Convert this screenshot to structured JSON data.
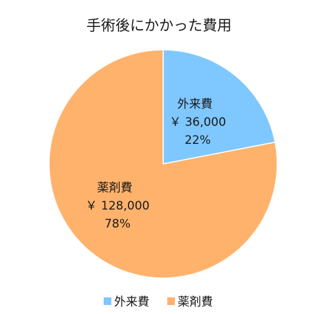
{
  "chart_data": {
    "type": "pie",
    "title": "手術後にかかった費用",
    "slices": [
      {
        "label": "外来費",
        "value": 36000,
        "value_label": "￥ 36,000",
        "percent_label": "22%",
        "color": "#7fc7ff"
      },
      {
        "label": "薬剤費",
        "value": 128000,
        "value_label": "￥ 128,000",
        "percent_label": "78%",
        "color": "#ffb26b"
      }
    ],
    "legend": {
      "position": "bottom",
      "items": [
        "外来費",
        "薬剤費"
      ]
    }
  }
}
